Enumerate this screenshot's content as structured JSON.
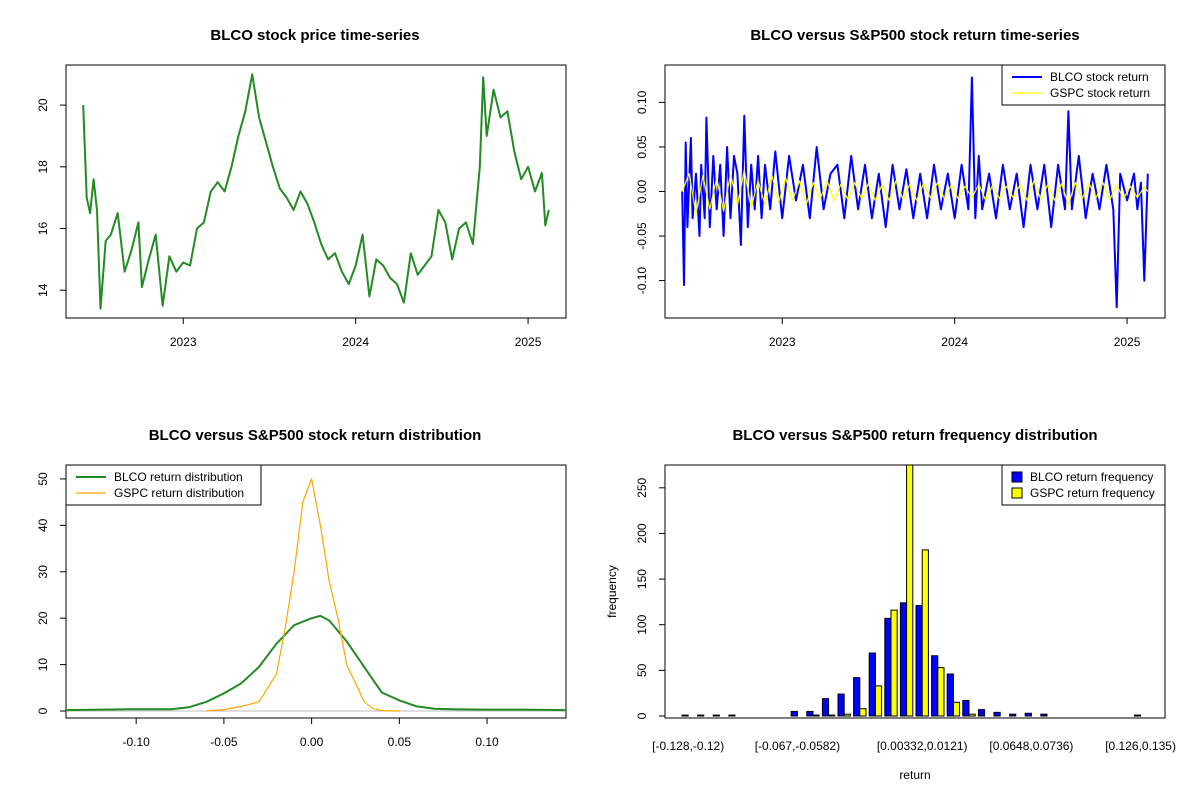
{
  "colors": {
    "price": "#228B22",
    "blco_ret": "#0000FF",
    "gspc_ret": "#FFFF00",
    "blco_density": "#228B22",
    "gspc_density": "#FFA500",
    "blco_hist": "#0000FF",
    "gspc_hist": "#FFFF00"
  },
  "chart_data": [
    {
      "type": "line",
      "title": "BLCO stock price time-series",
      "xlabel": "",
      "ylabel": "",
      "xlim": [
        2022.32,
        2025.22
      ],
      "ylim": [
        13.1,
        21.3
      ],
      "xticks": [
        2023,
        2024,
        2025
      ],
      "xtick_labels": [
        "2023",
        "2024",
        "2025"
      ],
      "yticks": [
        14,
        16,
        18,
        20
      ],
      "ytick_labels": [
        "14",
        "16",
        "18",
        "20"
      ],
      "series": [
        {
          "name": "BLCO",
          "color_key": "price",
          "x": [
            2022.42,
            2022.44,
            2022.46,
            2022.48,
            2022.5,
            2022.52,
            2022.55,
            2022.58,
            2022.62,
            2022.66,
            2022.7,
            2022.74,
            2022.76,
            2022.8,
            2022.84,
            2022.88,
            2022.92,
            2022.96,
            2023.0,
            2023.04,
            2023.08,
            2023.12,
            2023.16,
            2023.2,
            2023.24,
            2023.28,
            2023.32,
            2023.36,
            2023.4,
            2023.44,
            2023.48,
            2023.52,
            2023.56,
            2023.6,
            2023.64,
            2023.68,
            2023.72,
            2023.76,
            2023.8,
            2023.84,
            2023.88,
            2023.92,
            2023.96,
            2024.0,
            2024.04,
            2024.08,
            2024.12,
            2024.16,
            2024.2,
            2024.24,
            2024.28,
            2024.32,
            2024.36,
            2024.4,
            2024.44,
            2024.48,
            2024.52,
            2024.56,
            2024.6,
            2024.64,
            2024.68,
            2024.72,
            2024.74,
            2024.76,
            2024.8,
            2024.84,
            2024.88,
            2024.92,
            2024.96,
            2025.0,
            2025.04,
            2025.08,
            2025.1,
            2025.12
          ],
          "y": [
            20.0,
            17.0,
            16.5,
            17.6,
            16.6,
            13.4,
            15.6,
            15.8,
            16.5,
            14.6,
            15.3,
            16.2,
            14.1,
            15.0,
            15.8,
            13.5,
            15.1,
            14.6,
            14.9,
            14.8,
            16.0,
            16.2,
            17.2,
            17.5,
            17.2,
            18.0,
            19.0,
            19.8,
            21.0,
            19.6,
            18.8,
            18.0,
            17.3,
            17.0,
            16.6,
            17.2,
            16.8,
            16.2,
            15.5,
            15.0,
            15.2,
            14.6,
            14.2,
            14.8,
            15.8,
            13.8,
            15.0,
            14.8,
            14.4,
            14.2,
            13.6,
            15.2,
            14.5,
            14.8,
            15.1,
            16.6,
            16.2,
            15.0,
            16.0,
            16.2,
            15.5,
            18.0,
            20.9,
            19.0,
            20.5,
            19.6,
            19.8,
            18.5,
            17.6,
            18.0,
            17.2,
            17.8,
            16.1,
            16.6
          ]
        }
      ]
    },
    {
      "type": "line",
      "title": "BLCO versus S&P500 stock return time-series",
      "xlabel": "",
      "ylabel": "",
      "xlim": [
        2022.32,
        2025.22
      ],
      "ylim": [
        -0.142,
        0.142
      ],
      "xticks": [
        2023,
        2024,
        2025
      ],
      "xtick_labels": [
        "2023",
        "2024",
        "2025"
      ],
      "yticks": [
        -0.1,
        -0.05,
        0.0,
        0.05,
        0.1
      ],
      "ytick_labels": [
        "-0.10",
        "-0.05",
        "0.00",
        "0.05",
        "0.10"
      ],
      "legend_position": "top-right",
      "legend": [
        "BLCO stock return",
        "GSPC stock return"
      ],
      "series": [
        {
          "name": "BLCO stock return",
          "color_key": "blco_ret",
          "x": [
            2022.42,
            2022.43,
            2022.44,
            2022.45,
            2022.47,
            2022.48,
            2022.5,
            2022.52,
            2022.53,
            2022.55,
            2022.56,
            2022.58,
            2022.6,
            2022.62,
            2022.64,
            2022.66,
            2022.68,
            2022.7,
            2022.72,
            2022.74,
            2022.76,
            2022.78,
            2022.8,
            2022.82,
            2022.84,
            2022.86,
            2022.88,
            2022.9,
            2022.93,
            2022.96,
            2023.0,
            2023.04,
            2023.08,
            2023.12,
            2023.16,
            2023.2,
            2023.24,
            2023.28,
            2023.32,
            2023.36,
            2023.4,
            2023.44,
            2023.48,
            2023.52,
            2023.56,
            2023.6,
            2023.64,
            2023.68,
            2023.72,
            2023.76,
            2023.8,
            2023.84,
            2023.88,
            2023.92,
            2023.96,
            2024.0,
            2024.04,
            2024.08,
            2024.1,
            2024.12,
            2024.14,
            2024.16,
            2024.2,
            2024.24,
            2024.28,
            2024.32,
            2024.36,
            2024.4,
            2024.44,
            2024.48,
            2024.52,
            2024.56,
            2024.6,
            2024.64,
            2024.66,
            2024.68,
            2024.72,
            2024.76,
            2024.8,
            2024.84,
            2024.88,
            2024.92,
            2024.94,
            2024.96,
            2025.0,
            2025.04,
            2025.06,
            2025.08,
            2025.1,
            2025.12
          ],
          "y": [
            0.0,
            -0.105,
            0.055,
            -0.04,
            0.06,
            -0.03,
            0.02,
            -0.05,
            0.03,
            -0.03,
            0.083,
            -0.04,
            0.04,
            -0.02,
            0.03,
            -0.05,
            0.05,
            -0.03,
            0.04,
            0.02,
            -0.06,
            0.085,
            -0.04,
            0.03,
            -0.02,
            0.04,
            -0.03,
            0.03,
            -0.02,
            0.045,
            -0.03,
            0.04,
            -0.01,
            0.03,
            -0.03,
            0.05,
            -0.02,
            0.02,
            0.03,
            -0.03,
            0.04,
            -0.02,
            0.03,
            -0.03,
            0.02,
            -0.04,
            0.03,
            -0.02,
            0.025,
            -0.03,
            0.02,
            -0.03,
            0.03,
            -0.02,
            0.02,
            -0.03,
            0.03,
            -0.02,
            0.128,
            -0.03,
            0.04,
            -0.02,
            0.02,
            -0.03,
            0.03,
            -0.02,
            0.02,
            -0.04,
            0.03,
            -0.02,
            0.03,
            -0.04,
            0.03,
            -0.02,
            0.09,
            -0.02,
            0.04,
            -0.03,
            0.02,
            -0.02,
            0.03,
            -0.02,
            -0.13,
            0.02,
            -0.01,
            0.02,
            -0.02,
            0.01,
            -0.1,
            0.02
          ]
        },
        {
          "name": "GSPC stock return",
          "color_key": "gspc_ret",
          "x": [
            2022.42,
            2022.46,
            2022.5,
            2022.54,
            2022.58,
            2022.62,
            2022.66,
            2022.7,
            2022.74,
            2022.78,
            2022.82,
            2022.86,
            2022.9,
            2022.94,
            2022.98,
            2023.02,
            2023.06,
            2023.1,
            2023.14,
            2023.18,
            2023.22,
            2023.26,
            2023.3,
            2023.34,
            2023.38,
            2023.42,
            2023.46,
            2023.5,
            2023.54,
            2023.58,
            2023.62,
            2023.66,
            2023.7,
            2023.74,
            2023.78,
            2023.82,
            2023.86,
            2023.9,
            2023.94,
            2023.98,
            2024.02,
            2024.06,
            2024.1,
            2024.14,
            2024.18,
            2024.22,
            2024.26,
            2024.3,
            2024.34,
            2024.38,
            2024.42,
            2024.46,
            2024.5,
            2024.54,
            2024.58,
            2024.62,
            2024.66,
            2024.7,
            2024.74,
            2024.78,
            2024.82,
            2024.86,
            2024.9,
            2024.94,
            2024.98,
            2025.02,
            2025.06,
            2025.1,
            2025.12
          ],
          "y": [
            0.0,
            0.02,
            -0.025,
            0.018,
            -0.02,
            0.015,
            -0.022,
            0.02,
            -0.015,
            0.024,
            -0.018,
            0.012,
            -0.015,
            0.018,
            -0.012,
            0.015,
            -0.01,
            0.012,
            -0.014,
            0.01,
            -0.008,
            0.012,
            -0.01,
            0.008,
            -0.009,
            0.01,
            -0.008,
            0.009,
            -0.01,
            0.008,
            -0.01,
            0.012,
            -0.009,
            0.008,
            -0.01,
            0.009,
            -0.007,
            0.01,
            -0.008,
            0.007,
            -0.008,
            0.006,
            -0.007,
            0.008,
            -0.01,
            0.007,
            -0.008,
            0.006,
            -0.007,
            0.008,
            -0.01,
            0.012,
            -0.009,
            0.008,
            -0.01,
            0.009,
            -0.015,
            0.01,
            -0.008,
            0.009,
            -0.007,
            0.01,
            -0.009,
            0.007,
            -0.008,
            0.006,
            -0.007,
            0.005,
            0.0
          ]
        }
      ]
    },
    {
      "type": "line",
      "title": "BLCO versus S&P500 stock return distribution",
      "xlabel": "",
      "ylabel": "",
      "xlim": [
        -0.14,
        0.145
      ],
      "ylim": [
        -1.5,
        53
      ],
      "xticks": [
        -0.1,
        -0.05,
        0.0,
        0.05,
        0.1
      ],
      "xtick_labels": [
        "-0.10",
        "-0.05",
        "0.00",
        "0.05",
        "0.10"
      ],
      "yticks": [
        0,
        10,
        20,
        30,
        40,
        50
      ],
      "ytick_labels": [
        "0",
        "10",
        "20",
        "30",
        "40",
        "50"
      ],
      "legend_position": "top-left",
      "legend": [
        "BLCO return distribution",
        "GSPC return distribution"
      ],
      "series": [
        {
          "name": "BLCO return distribution",
          "color_key": "blco_density",
          "x": [
            -0.14,
            -0.12,
            -0.1,
            -0.08,
            -0.07,
            -0.06,
            -0.05,
            -0.04,
            -0.03,
            -0.02,
            -0.01,
            0.0,
            0.005,
            0.01,
            0.02,
            0.03,
            0.04,
            0.05,
            0.06,
            0.07,
            0.08,
            0.1,
            0.12,
            0.145
          ],
          "y": [
            0.2,
            0.3,
            0.4,
            0.4,
            0.8,
            2.0,
            3.8,
            6.0,
            9.5,
            14.5,
            18.5,
            20.0,
            20.5,
            19.5,
            15.0,
            9.5,
            4.0,
            2.3,
            1.0,
            0.5,
            0.4,
            0.3,
            0.3,
            0.2
          ]
        },
        {
          "name": "GSPC return distribution",
          "color_key": "gspc_density",
          "x": [
            -0.06,
            -0.05,
            -0.04,
            -0.03,
            -0.025,
            -0.02,
            -0.015,
            -0.01,
            -0.005,
            0.0,
            0.005,
            0.01,
            0.015,
            0.02,
            0.025,
            0.03,
            0.035,
            0.04,
            0.05
          ],
          "y": [
            0.0,
            0.3,
            1.0,
            2.0,
            5.0,
            8.0,
            18.0,
            30.0,
            45.0,
            50.0,
            40.0,
            28.0,
            20.0,
            10.0,
            6.0,
            2.0,
            0.5,
            0.1,
            0.0
          ]
        }
      ]
    },
    {
      "type": "bar",
      "title": "BLCO versus S&P500 return frequency distribution",
      "xlabel": "return",
      "ylabel": "frequency",
      "ylim": [
        0,
        275
      ],
      "yticks": [
        0,
        50,
        100,
        150,
        200,
        250
      ],
      "ytick_labels": [
        "0",
        "50",
        "100",
        "150",
        "200",
        "250"
      ],
      "tick_labels": [
        {
          "index": 0,
          "label": "[-0.128,-0.12)"
        },
        {
          "index": 7,
          "label": "[-0.067,-0.0582)"
        },
        {
          "index": 15,
          "label": "[0.00332,0.0121)"
        },
        {
          "index": 22,
          "label": "[0.0648,0.0736)"
        },
        {
          "index": 29,
          "label": "[0.126,0.135)"
        }
      ],
      "legend_position": "top-right",
      "legend": [
        "BLCO return frequency",
        "GSPC return frequency"
      ],
      "series": [
        {
          "name": "BLCO return frequency",
          "color_key": "blco_hist",
          "values": [
            1,
            1,
            1,
            1,
            0,
            0,
            0,
            5,
            5,
            19,
            24,
            42,
            69,
            107,
            124,
            121,
            66,
            46,
            17,
            7,
            4,
            2,
            3,
            2,
            0,
            0,
            0,
            0,
            0,
            1
          ]
        },
        {
          "name": "GSPC return frequency",
          "color_key": "gspc_hist",
          "values": [
            0,
            0,
            0,
            0,
            0,
            0,
            0,
            0,
            1,
            1,
            2,
            8,
            33,
            116,
            275,
            182,
            53,
            15,
            2,
            0,
            0,
            0,
            0,
            0,
            0,
            0,
            0,
            0,
            0,
            0
          ]
        }
      ]
    }
  ]
}
